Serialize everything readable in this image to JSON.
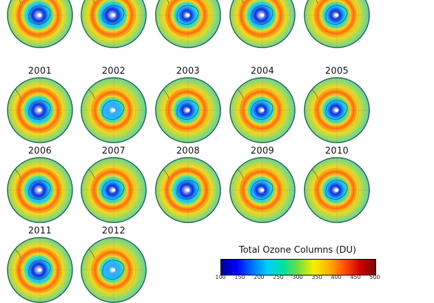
{
  "chart_data": {
    "type": "heatmap",
    "panels": [
      {
        "year": "",
        "hole": "deep"
      },
      {
        "year": "",
        "hole": "deep"
      },
      {
        "year": "",
        "hole": "medium"
      },
      {
        "year": "",
        "hole": "deep"
      },
      {
        "year": "",
        "hole": "medium"
      },
      {
        "year": "2001",
        "hole": "deep"
      },
      {
        "year": "2002",
        "hole": "weak"
      },
      {
        "year": "2003",
        "hole": "medium"
      },
      {
        "year": "2004",
        "hole": "medium"
      },
      {
        "year": "2005",
        "hole": "medium"
      },
      {
        "year": "2006",
        "hole": "deep"
      },
      {
        "year": "2007",
        "hole": "medium"
      },
      {
        "year": "2008",
        "hole": "deep"
      },
      {
        "year": "2009",
        "hole": "medium"
      },
      {
        "year": "2010",
        "hole": "medium"
      },
      {
        "year": "2011",
        "hole": "deep"
      },
      {
        "year": "2012",
        "hole": "weak"
      }
    ],
    "colorbar": {
      "title": "Total Ozone Columns (DU)",
      "min": 100,
      "max": 500,
      "ticks": [
        "100",
        "150",
        "200",
        "250",
        "300",
        "350",
        "400",
        "450",
        "500"
      ],
      "colors": [
        "#00008c",
        "#0000ff",
        "#0070ff",
        "#00d0ff",
        "#00e0a0",
        "#70e040",
        "#f8f000",
        "#ffb000",
        "#ff5000",
        "#d00000",
        "#7a0000"
      ]
    }
  },
  "colors": {
    "deep_core": "#0a2fd8",
    "weak_core": "#3aa9f0",
    "rim_high": "#ff6a12",
    "rim_mid": "#f6d81a",
    "outer": "#2fd6c0",
    "coast": "#2b3b45"
  }
}
